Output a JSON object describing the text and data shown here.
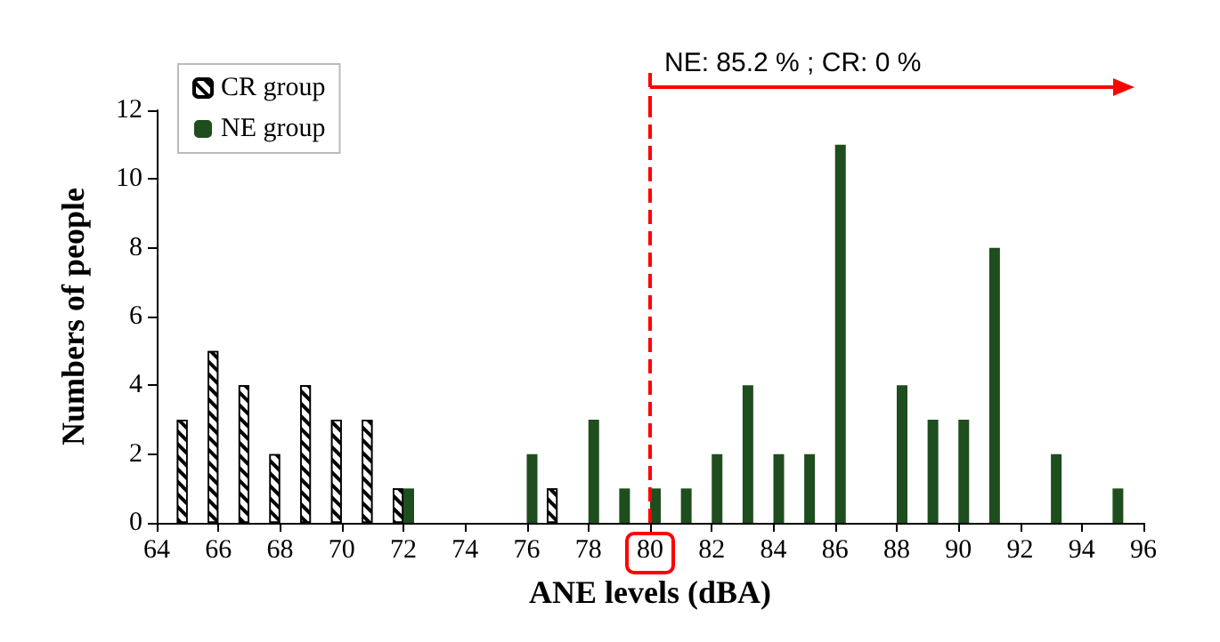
{
  "chart_data": {
    "type": "bar",
    "xlabel": "ANE levels (dBA)",
    "ylabel": "Numbers of people",
    "series": [
      {
        "name": "CR group",
        "color": "#ffffff",
        "x": [
          65,
          66,
          67,
          68,
          69,
          70,
          71,
          72,
          77
        ],
        "values": [
          3,
          5,
          4,
          2,
          4,
          3,
          3,
          1,
          1
        ]
      },
      {
        "name": "NE group",
        "color": "#1e4d1e",
        "x": [
          72,
          76,
          78,
          79,
          80,
          81,
          82,
          83,
          84,
          85,
          86,
          88,
          89,
          90,
          91,
          93,
          95
        ],
        "values": [
          1,
          2,
          3,
          1,
          1,
          1,
          2,
          4,
          2,
          2,
          11,
          4,
          3,
          3,
          8,
          2,
          1
        ]
      }
    ],
    "xlim": [
      64,
      96
    ],
    "xticks": [
      64,
      66,
      68,
      70,
      72,
      74,
      76,
      78,
      80,
      82,
      84,
      86,
      88,
      90,
      92,
      94,
      96
    ],
    "ylim": [
      0,
      12
    ],
    "yticks": [
      0,
      2,
      4,
      6,
      8,
      10,
      12
    ],
    "grid": false,
    "legend": "top left",
    "ref_lines": [
      {
        "axis": "x",
        "value": 80,
        "color": "#ff0000",
        "line_style": "dashed"
      }
    ],
    "annotations": [
      "NE: 85.2 % ;  CR: 0 %"
    ]
  }
}
